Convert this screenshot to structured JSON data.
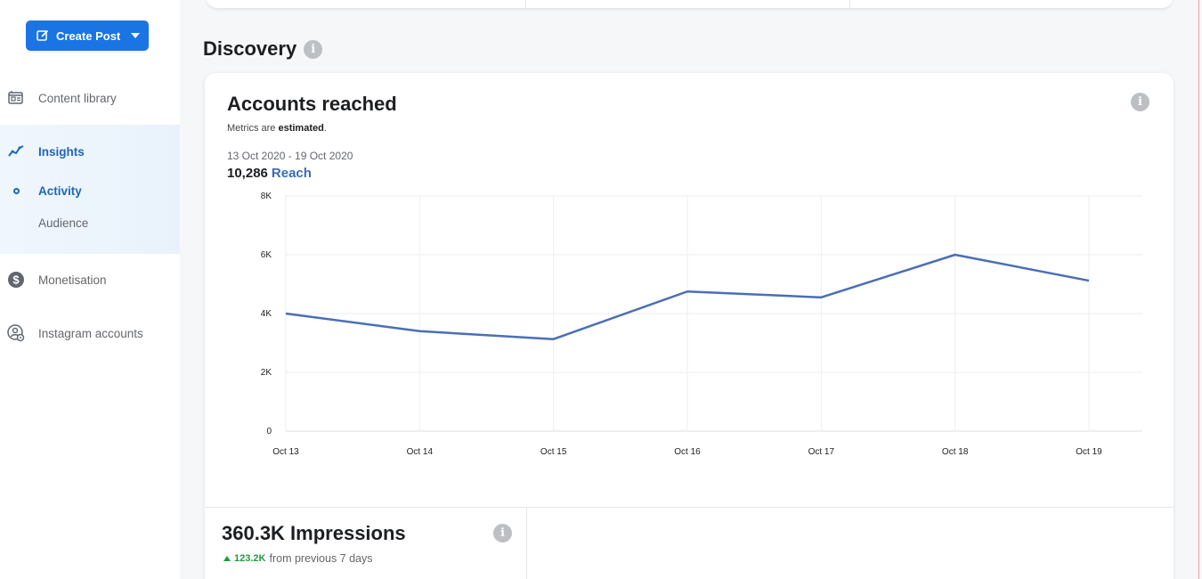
{
  "sidebar": {
    "create_post": "Create Post",
    "items": [
      {
        "label": "Content library",
        "icon": "library-icon"
      },
      {
        "label": "Insights",
        "icon": "insights-icon"
      },
      {
        "label": "Activity",
        "icon": "dot-icon"
      },
      {
        "label": "Audience"
      },
      {
        "label": "Monetisation",
        "icon": "dollar-icon"
      },
      {
        "label": "Instagram accounts",
        "icon": "account-settings-icon"
      }
    ]
  },
  "main": {
    "section_title": "Discovery",
    "card": {
      "title": "Accounts reached",
      "estimate_prefix": "Metrics are ",
      "estimate_bold": "estimated",
      "estimate_suffix": ".",
      "date_range": "13 Oct 2020 - 19 Oct 2020",
      "reach_value": "10,286",
      "reach_label": "Reach"
    },
    "impressions": {
      "title": "360.3K Impressions",
      "change_value": "123.2K",
      "change_text": "from previous 7 days"
    }
  },
  "colors": {
    "accent": "#1b74e4",
    "line": "#4a6fb5",
    "positive": "#1f9c3c"
  },
  "chart_data": {
    "type": "line",
    "categories": [
      "Oct 13",
      "Oct 14",
      "Oct 15",
      "Oct 16",
      "Oct 17",
      "Oct 18",
      "Oct 19"
    ],
    "values": [
      4000,
      3400,
      3130,
      4750,
      4550,
      6000,
      5120
    ],
    "yticks": [
      "0",
      "2K",
      "4K",
      "6K",
      "8K"
    ],
    "ylim": [
      0,
      8000
    ],
    "grid": true
  }
}
